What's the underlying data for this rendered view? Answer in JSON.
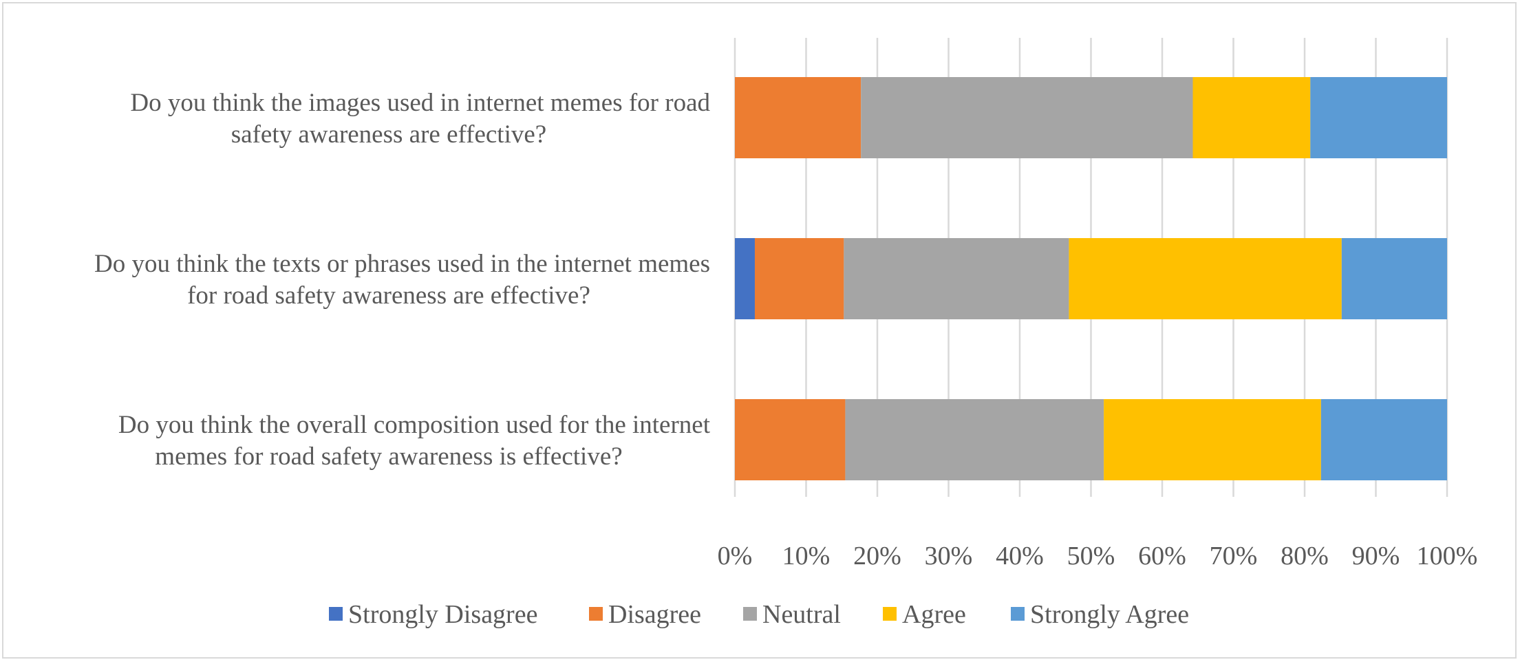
{
  "chart_data": {
    "type": "bar",
    "orientation": "horizontal",
    "stacked": true,
    "percent_stacked": true,
    "categories": [
      [
        "Do you think the images used in internet memes for road",
        "safety awareness are effective?"
      ],
      [
        "Do you think the texts or phrases used in the internet memes",
        "for road safety awareness are effective?"
      ],
      [
        "Do you think the overall composition used for the internet",
        "memes for road safety awareness is effective?"
      ]
    ],
    "series": [
      {
        "name": "Strongly Disagree",
        "color": "#4472C4",
        "values": [
          0,
          2.8,
          0
        ]
      },
      {
        "name": "Disagree",
        "color": "#ED7D31",
        "values": [
          17.7,
          12.5,
          15.5
        ]
      },
      {
        "name": "Neutral",
        "color": "#A5A5A5",
        "values": [
          46.6,
          31.6,
          36.3
        ]
      },
      {
        "name": "Agree",
        "color": "#FFC000",
        "values": [
          16.5,
          38.3,
          30.5
        ]
      },
      {
        "name": "Strongly Agree",
        "color": "#5B9BD5",
        "values": [
          19.2,
          14.8,
          17.7
        ]
      }
    ],
    "xlim": [
      0,
      100
    ],
    "x_ticks": [
      "0%",
      "10%",
      "20%",
      "30%",
      "40%",
      "50%",
      "60%",
      "70%",
      "80%",
      "90%",
      "100%"
    ],
    "grid": true,
    "legend": "bottom"
  }
}
